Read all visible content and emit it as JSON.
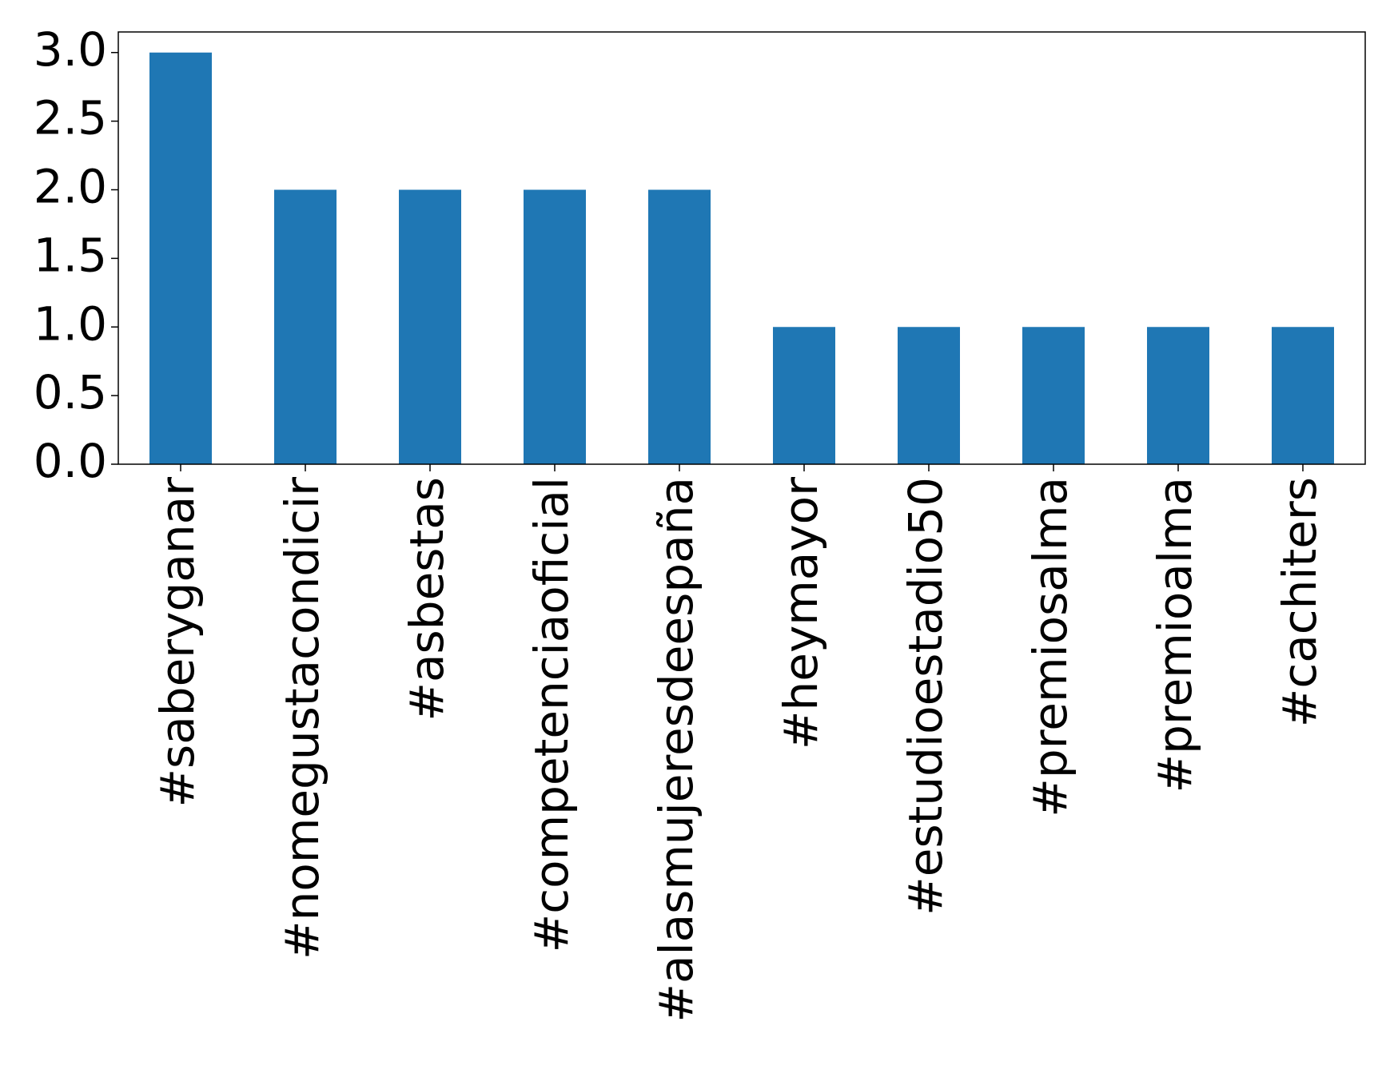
{
  "chart_data": {
    "type": "bar",
    "categories": [
      "#saberyganar",
      "#nomegustacondicir",
      "#asbestas",
      "#competenciaoficial",
      "#alasmujeresdeespaña",
      "#heymayor",
      "#estudioestadio50",
      "#premiosalma",
      "#premioalma",
      "#cachiters"
    ],
    "values": [
      3,
      2,
      2,
      2,
      2,
      1,
      1,
      1,
      1,
      1
    ],
    "color": "#1f77b4",
    "ylim": [
      0,
      3.15
    ],
    "yticks": [
      {
        "value": 0,
        "label": "0.0"
      },
      0.5,
      {
        "value": 1,
        "label": "1.0"
      },
      1.5,
      {
        "value": 2,
        "label": "2.0"
      },
      2.5,
      {
        "value": 3,
        "label": "3.0"
      }
    ],
    "grid": false
  }
}
